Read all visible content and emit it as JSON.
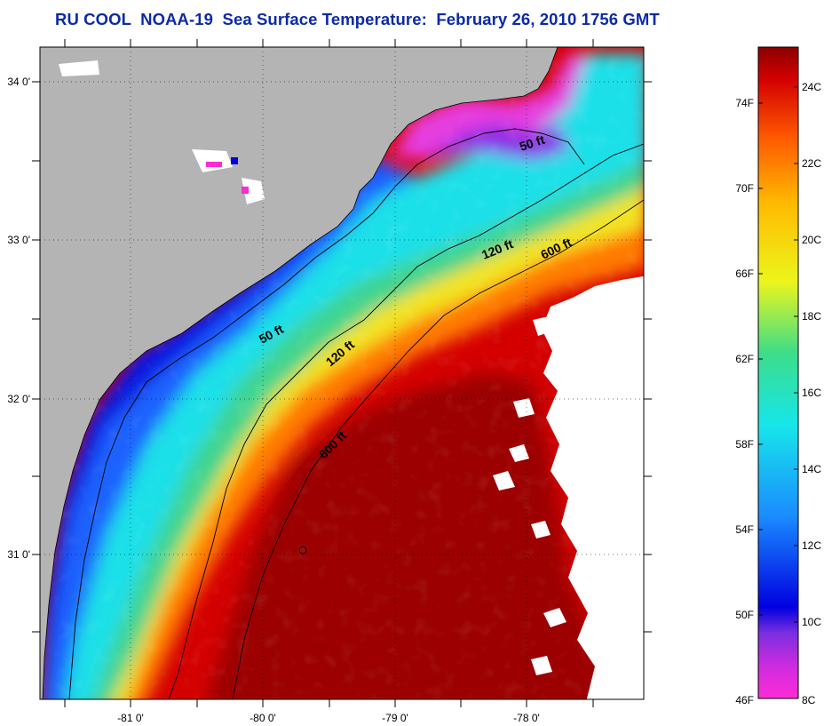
{
  "title": "RU COOL  NOAA-19  Sea Surface Temperature:  February 26, 2010 1756 GMT",
  "map": {
    "longitude_labels": [
      "-81 0'",
      "-80 0'",
      "-79 0'",
      "-78 0'"
    ],
    "latitude_labels": [
      "34 0'",
      "33 0'",
      "32 0'",
      "31 0'"
    ],
    "contours": [
      {
        "depth": "50 ft"
      },
      {
        "depth": "120 ft"
      },
      {
        "depth": "600 ft"
      }
    ],
    "contour_labels": [
      "50 ft",
      "120 ft",
      "600 ft",
      "50 ft",
      "120 ft",
      "600 ft"
    ],
    "land_color": "#b4b4b4",
    "cloud_color": "#ffffff",
    "marker_symbol": "o"
  },
  "colorbar": {
    "fahrenheit_labels": [
      "74F",
      "70F",
      "66F",
      "62F",
      "58F",
      "54F",
      "50F",
      "46F"
    ],
    "celsius_labels": [
      "24C",
      "22C",
      "20C",
      "18C",
      "16C",
      "14C",
      "12C",
      "10C",
      "8C"
    ],
    "color_stops": [
      {
        "label": "8C",
        "color": "#ff2bd6"
      },
      {
        "label": "9C",
        "color": "#9b2fe0"
      },
      {
        "label": "10C",
        "color": "#0000e0"
      },
      {
        "label": "12C",
        "color": "#1a8cff"
      },
      {
        "label": "14C",
        "color": "#17e6ea"
      },
      {
        "label": "16C",
        "color": "#3cdd8a"
      },
      {
        "label": "18C",
        "color": "#ecf51c"
      },
      {
        "label": "20C",
        "color": "#ffba00"
      },
      {
        "label": "22C",
        "color": "#ff5a00"
      },
      {
        "label": "24C",
        "color": "#d40000"
      },
      {
        "label": "25C",
        "color": "#8c0000"
      }
    ]
  }
}
